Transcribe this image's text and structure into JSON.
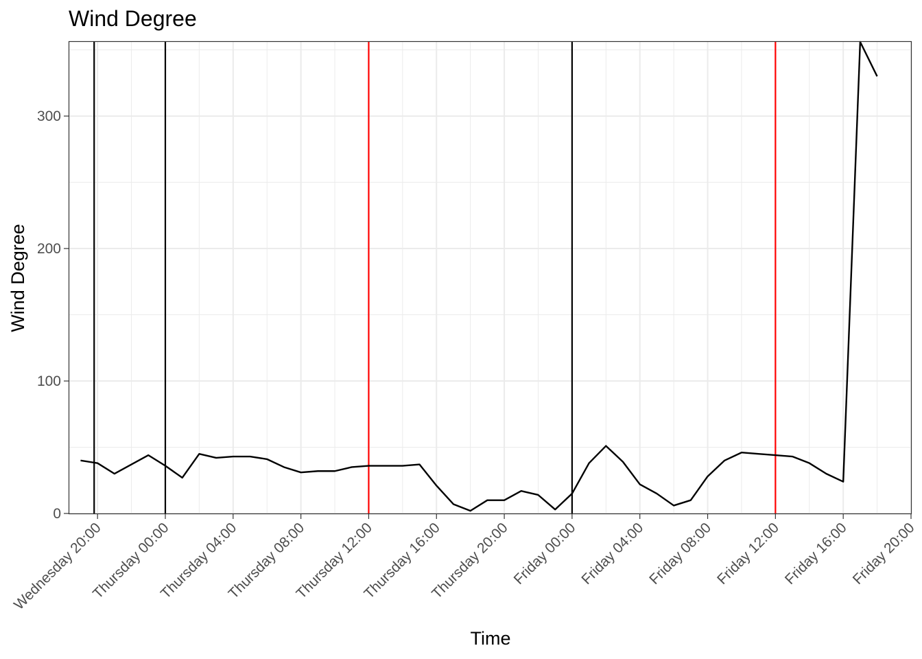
{
  "chart_data": {
    "type": "line",
    "title": "Wind Degree",
    "xlabel": "Time",
    "ylabel": "Wind Degree",
    "x_unit": "hour",
    "xlim": [
      "Wednesday 18:20",
      "Friday 20:00"
    ],
    "ylim": [
      0,
      356
    ],
    "grid": true,
    "yticks": [
      0,
      100,
      200,
      300
    ],
    "xticks": [
      "Wednesday 20:00",
      "Thursday 00:00",
      "Thursday 04:00",
      "Thursday 08:00",
      "Thursday 12:00",
      "Thursday 16:00",
      "Thursday 20:00",
      "Friday 00:00",
      "Friday 04:00",
      "Friday 08:00",
      "Friday 12:00",
      "Friday 16:00",
      "Friday 20:00"
    ],
    "vlines": [
      {
        "x": "Wednesday 19:48",
        "color": "#000000"
      },
      {
        "x": "Thursday 00:00",
        "color": "#000000"
      },
      {
        "x": "Thursday 12:00",
        "color": "#ff0000"
      },
      {
        "x": "Friday 00:00",
        "color": "#000000"
      },
      {
        "x": "Friday 12:00",
        "color": "#ff0000"
      }
    ],
    "series": [
      {
        "color": "#000000",
        "x": [
          "Wednesday 19:00",
          "Wednesday 20:00",
          "Wednesday 21:00",
          "Wednesday 22:00",
          "Wednesday 23:00",
          "Thursday 00:00",
          "Thursday 01:00",
          "Thursday 02:00",
          "Thursday 03:00",
          "Thursday 04:00",
          "Thursday 05:00",
          "Thursday 06:00",
          "Thursday 07:00",
          "Thursday 08:00",
          "Thursday 09:00",
          "Thursday 10:00",
          "Thursday 11:00",
          "Thursday 12:00",
          "Thursday 13:00",
          "Thursday 14:00",
          "Thursday 15:00",
          "Thursday 16:00",
          "Thursday 17:00",
          "Thursday 18:00",
          "Thursday 19:00",
          "Thursday 20:00",
          "Thursday 21:00",
          "Thursday 22:00",
          "Thursday 23:00",
          "Friday 00:00",
          "Friday 01:00",
          "Friday 02:00",
          "Friday 03:00",
          "Friday 04:00",
          "Friday 05:00",
          "Friday 06:00",
          "Friday 07:00",
          "Friday 08:00",
          "Friday 09:00",
          "Friday 10:00",
          "Friday 11:00",
          "Friday 12:00",
          "Friday 13:00",
          "Friday 14:00",
          "Friday 15:00",
          "Friday 16:00",
          "Friday 17:00",
          "Friday 18:00"
        ],
        "values": [
          40,
          38,
          30,
          37,
          44,
          36,
          27,
          45,
          42,
          43,
          43,
          41,
          35,
          31,
          32,
          32,
          35,
          36,
          36,
          36,
          37,
          21,
          7,
          2,
          10,
          10,
          17,
          14,
          3,
          15,
          38,
          51,
          39,
          22,
          15,
          6,
          10,
          28,
          40,
          46,
          45,
          44,
          43,
          38,
          30,
          24,
          356,
          330
        ]
      }
    ]
  }
}
